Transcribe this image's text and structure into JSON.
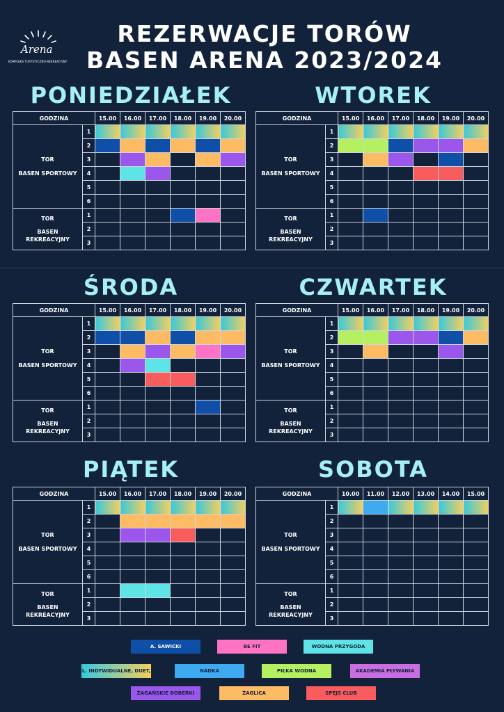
{
  "logo": {
    "name": "Arena",
    "sub": "KOMPLEKS TURYSTYCZNO-REKREACYJNY"
  },
  "title_line1": "REZERWACJE TORÓW",
  "title_line2": "BASEN ARENA 2023/2024",
  "labels": {
    "godzina": "GODZINA",
    "tor": "TOR",
    "basen_sportowy": "BASEN SPORTOWY",
    "basen": "BASEN",
    "rekreacyjny": "REKREACYJNY",
    "sport_lanes": [
      "1",
      "2",
      "3",
      "4",
      "5",
      "6"
    ],
    "rec_lanes": [
      "1",
      "2",
      "3"
    ]
  },
  "colors": {
    "background": "#13223b",
    "title_day": "#a6f0f4",
    "A": "#0f4fa8",
    "F": "#ff73c4",
    "W": "#5ee4e6",
    "I": "linear-gradient(90deg,#38c9dc,#f5cf5c)",
    "N": "#3eaaf0",
    "P": "#b4f060",
    "K": "#c96ee0",
    "B": "#9b56ec",
    "Z": "#fdbb63",
    "S": "#f85c5c"
  },
  "days": [
    {
      "name": "PONIEDZIAŁEK",
      "hours": [
        "15.00",
        "16.00",
        "17.00",
        "18.00",
        "19.00",
        "20.00"
      ],
      "sport": [
        [
          "I",
          "I",
          "I",
          "I",
          "I",
          "I"
        ],
        [
          "A",
          "Z",
          "A",
          "Z",
          "A",
          "Z"
        ],
        [
          "",
          "B",
          "Z",
          "",
          "Z",
          "B"
        ],
        [
          "",
          "W",
          "B",
          "",
          "",
          ""
        ],
        [
          "",
          "",
          "",
          "",
          "",
          ""
        ],
        [
          "",
          "",
          "",
          "",
          "",
          ""
        ]
      ],
      "rec": [
        [
          "",
          "",
          "",
          "A",
          "F",
          ""
        ],
        [
          "",
          "",
          "",
          "",
          "",
          ""
        ],
        [
          "",
          "",
          "",
          "",
          "",
          ""
        ]
      ]
    },
    {
      "name": "WTOREK",
      "hours": [
        "15.00",
        "16.00",
        "17.00",
        "18.00",
        "19.00",
        "20.00"
      ],
      "sport": [
        [
          "I",
          "I",
          "I",
          "I",
          "I",
          "I"
        ],
        [
          "P",
          "P",
          "A",
          "B",
          "B",
          "Z"
        ],
        [
          "",
          "Z",
          "B",
          "",
          "A",
          ""
        ],
        [
          "",
          "",
          "",
          "S",
          "S",
          ""
        ],
        [
          "",
          "",
          "",
          "",
          "",
          ""
        ],
        [
          "",
          "",
          "",
          "",
          "",
          ""
        ]
      ],
      "rec": [
        [
          "",
          "A",
          "",
          "",
          "",
          ""
        ],
        [
          "",
          "",
          "",
          "",
          "",
          ""
        ],
        [
          "",
          "",
          "",
          "",
          "",
          ""
        ]
      ]
    },
    {
      "name": "ŚRODA",
      "hours": [
        "15.00",
        "16.00",
        "17.00",
        "18.00",
        "19.00",
        "20.00"
      ],
      "sport": [
        [
          "I",
          "I",
          "I",
          "I",
          "I",
          "I"
        ],
        [
          "A",
          "A",
          "Z",
          "A",
          "Z",
          "Z"
        ],
        [
          "",
          "Z",
          "B",
          "Z",
          "F",
          "B"
        ],
        [
          "",
          "B",
          "W",
          "",
          "",
          ""
        ],
        [
          "",
          "",
          "S",
          "S",
          "",
          ""
        ],
        [
          "",
          "",
          "",
          "",
          "",
          ""
        ]
      ],
      "rec": [
        [
          "",
          "",
          "",
          "",
          "A",
          ""
        ],
        [
          "",
          "",
          "",
          "",
          "",
          ""
        ],
        [
          "",
          "",
          "",
          "",
          "",
          ""
        ]
      ]
    },
    {
      "name": "CZWARTEK",
      "hours": [
        "15.00",
        "16.00",
        "17.00",
        "18.00",
        "19.00",
        "20.00"
      ],
      "sport": [
        [
          "I",
          "I",
          "I",
          "I",
          "I",
          "I"
        ],
        [
          "P",
          "P",
          "B",
          "B",
          "A",
          "Z"
        ],
        [
          "",
          "Z",
          "",
          "",
          "B",
          ""
        ],
        [
          "",
          "",
          "",
          "",
          "",
          ""
        ],
        [
          "",
          "",
          "",
          "",
          "",
          ""
        ],
        [
          "",
          "",
          "",
          "",
          "",
          ""
        ]
      ],
      "rec": [
        [
          "",
          "",
          "",
          "",
          "",
          ""
        ],
        [
          "",
          "",
          "",
          "",
          "",
          ""
        ],
        [
          "",
          "",
          "",
          "",
          "",
          ""
        ]
      ]
    },
    {
      "name": "PIĄTEK",
      "hours": [
        "15.00",
        "16.00",
        "17.00",
        "18.00",
        "19.00",
        "20.00"
      ],
      "sport": [
        [
          "I",
          "I",
          "I",
          "I",
          "I",
          "I"
        ],
        [
          "",
          "Z",
          "Z",
          "Z",
          "Z",
          "Z"
        ],
        [
          "",
          "B",
          "B",
          "S",
          "",
          ""
        ],
        [
          "",
          "",
          "",
          "",
          "",
          ""
        ],
        [
          "",
          "",
          "",
          "",
          "",
          ""
        ],
        [
          "",
          "",
          "",
          "",
          "",
          ""
        ]
      ],
      "rec": [
        [
          "",
          "W",
          "W",
          "",
          "",
          ""
        ],
        [
          "",
          "",
          "",
          "",
          "",
          ""
        ],
        [
          "",
          "",
          "",
          "",
          "",
          ""
        ]
      ]
    },
    {
      "name": "SOBOTA",
      "hours": [
        "10.00",
        "11.00",
        "12.00",
        "13.00",
        "14.00",
        "15.00"
      ],
      "sport": [
        [
          "I",
          "N",
          "I",
          "I",
          "I",
          "I"
        ],
        [
          "",
          "",
          "",
          "",
          "",
          ""
        ],
        [
          "",
          "",
          "",
          "",
          "",
          ""
        ],
        [
          "",
          "",
          "",
          "",
          "",
          ""
        ],
        [
          "",
          "",
          "",
          "",
          "",
          ""
        ],
        [
          "",
          "",
          "",
          "",
          "",
          ""
        ]
      ],
      "rec": [
        [
          "",
          "",
          "",
          "",
          "",
          ""
        ],
        [
          "",
          "",
          "",
          "",
          "",
          ""
        ],
        [
          "",
          "",
          "",
          "",
          "",
          ""
        ]
      ]
    }
  ],
  "legend": [
    {
      "code": "A",
      "label": "A. SAWICKI"
    },
    {
      "code": "F",
      "label": "BE FIT"
    },
    {
      "code": "W",
      "label": "WODNA PRZYGODA"
    },
    {
      "code": "I",
      "label": "L. INDYWIDUALNE, DUET, TRIO"
    },
    {
      "code": "N",
      "label": "NADKA"
    },
    {
      "code": "P",
      "label": "PIŁKA WODNA"
    },
    {
      "code": "K",
      "label": "AKADEMIA PŁYWANIA"
    },
    {
      "code": "B",
      "label": "ŻAGAŃSKIE BOBERKI"
    },
    {
      "code": "Z",
      "label": "ŻAGLICA"
    },
    {
      "code": "S",
      "label": "SPEJS CLUB"
    }
  ]
}
